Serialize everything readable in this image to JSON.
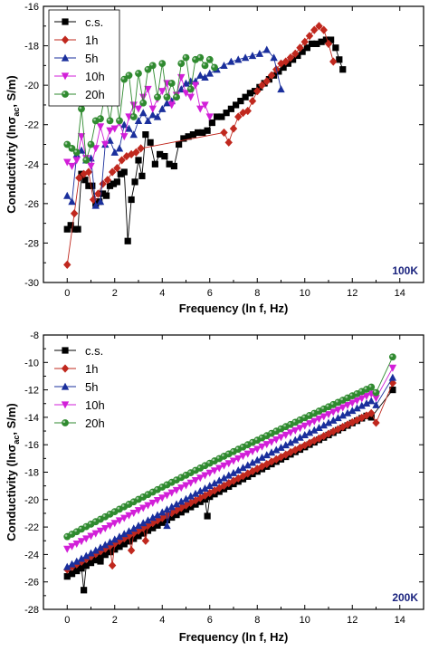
{
  "chart_data": [
    {
      "type": "line",
      "panel_label": "100K",
      "xlabel": "Frequency (ln f, Hz)",
      "ylabel_main": "Conductivity (lnσ",
      "ylabel_sub": "ac",
      "ylabel_end": ", S/m)",
      "xlim": [
        -1,
        15
      ],
      "ylim": [
        -30,
        -16
      ],
      "xticks": [
        "0",
        "2",
        "4",
        "6",
        "8",
        "10",
        "12",
        "14"
      ],
      "yticks": [
        "-30",
        "-28",
        "-26",
        "-24",
        "-22",
        "-20",
        "-18",
        "-16"
      ],
      "legend_position": "top-left",
      "series": [
        {
          "name": "c.s.",
          "color": "#000000",
          "marker": "square",
          "x": [
            0,
            0.15,
            0.3,
            0.45,
            0.6,
            0.75,
            0.9,
            1.05,
            1.2,
            1.35,
            1.5,
            1.65,
            1.8,
            1.95,
            2.1,
            2.25,
            2.4,
            2.55,
            2.7,
            2.85,
            3.0,
            3.15,
            3.3,
            3.5,
            3.7,
            3.9,
            4.1,
            4.3,
            4.5,
            4.7,
            4.9,
            5.1,
            5.3,
            5.5,
            5.7,
            5.9,
            6.1,
            6.3,
            6.5,
            6.7,
            6.9,
            7.1,
            7.3,
            7.5,
            7.7,
            7.9,
            8.1,
            8.3,
            8.5,
            8.7,
            8.9,
            9.1,
            9.3,
            9.5,
            9.7,
            9.9,
            10.1,
            10.3,
            10.5,
            10.7,
            10.9,
            11.1,
            11.3,
            11.45,
            11.6
          ],
          "y": [
            -27.3,
            -27.1,
            -27.3,
            -27.3,
            -24.5,
            -24.8,
            -25.1,
            -25.1,
            -26.0,
            -25.9,
            -25.5,
            -25.6,
            -25.1,
            -25.0,
            -24.9,
            -24.5,
            -24.4,
            -27.9,
            -25.8,
            -24.9,
            -23.8,
            -24.6,
            -22.5,
            -22.9,
            -24.0,
            -23.5,
            -23.6,
            -24.0,
            -24.1,
            -23.0,
            -22.7,
            -22.6,
            -22.5,
            -22.4,
            -22.4,
            -22.3,
            -21.9,
            -21.6,
            -21.6,
            -21.4,
            -21.2,
            -21.0,
            -20.8,
            -20.6,
            -20.4,
            -20.3,
            -20.1,
            -19.9,
            -19.7,
            -19.5,
            -19.3,
            -19.1,
            -18.9,
            -18.7,
            -18.5,
            -18.3,
            -18.1,
            -17.9,
            -17.9,
            -17.8,
            -17.7,
            -17.7,
            -18.1,
            -18.7,
            -19.2
          ]
        },
        {
          "name": "1h",
          "color": "#c0281e",
          "marker": "diamond",
          "x": [
            0,
            0.3,
            0.5,
            0.7,
            0.9,
            1.1,
            1.3,
            1.5,
            1.7,
            1.9,
            2.1,
            2.3,
            2.5,
            2.7,
            2.9,
            3.1,
            6.6,
            6.8,
            7.0,
            7.2,
            7.4,
            7.6,
            7.8,
            8.0,
            8.2,
            8.4,
            8.6,
            8.8,
            9.0,
            9.2,
            9.4,
            9.6,
            9.8,
            10.0,
            10.2,
            10.4,
            10.6,
            10.8,
            11.0,
            11.2
          ],
          "y": [
            -29.1,
            -26.5,
            -24.7,
            -24.5,
            -24.4,
            -25.8,
            -25.5,
            -25.0,
            -24.8,
            -24.4,
            -24.2,
            -23.8,
            -23.6,
            -23.5,
            -23.4,
            -23.2,
            -22.4,
            -22.9,
            -22.2,
            -21.6,
            -21.4,
            -21.3,
            -20.8,
            -20.3,
            -20.0,
            -19.8,
            -19.5,
            -19.2,
            -18.9,
            -18.8,
            -18.6,
            -18.4,
            -18.1,
            -17.8,
            -17.5,
            -17.2,
            -17.0,
            -17.2,
            -17.9,
            -18.8
          ]
        },
        {
          "name": "5h",
          "color": "#1a2f9c",
          "marker": "triangle-up",
          "x": [
            0,
            0.2,
            0.4,
            0.6,
            0.8,
            1.0,
            1.2,
            1.4,
            1.6,
            1.8,
            2.0,
            2.2,
            2.4,
            2.6,
            2.8,
            3.0,
            3.2,
            3.4,
            3.6,
            3.8,
            4.0,
            4.2,
            4.4,
            4.6,
            4.8,
            5.0,
            5.2,
            5.4,
            5.6,
            5.8,
            6.0,
            6.3,
            6.6,
            6.9,
            7.2,
            7.5,
            7.8,
            8.1,
            8.4,
            8.7,
            9.0
          ],
          "y": [
            -25.6,
            -25.9,
            -23.5,
            -23.3,
            -23.8,
            -23.7,
            -26.1,
            -25.9,
            -23.0,
            -22.8,
            -23.4,
            -23.2,
            -22.0,
            -22.2,
            -22.5,
            -21.8,
            -21.4,
            -21.8,
            -21.5,
            -21.6,
            -21.2,
            -20.9,
            -20.8,
            -20.5,
            -20.2,
            -19.9,
            -19.8,
            -19.8,
            -19.5,
            -19.6,
            -19.4,
            -19.2,
            -19.0,
            -18.8,
            -18.7,
            -18.6,
            -18.5,
            -18.4,
            -18.2,
            -18.6,
            -20.2
          ]
        },
        {
          "name": "10h",
          "color": "#d21fd8",
          "marker": "triangle-down",
          "x": [
            0,
            0.2,
            0.4,
            0.6,
            0.8,
            1.0,
            1.2,
            1.4,
            1.6,
            1.8,
            2.0,
            2.2,
            2.4,
            2.6,
            2.8,
            3.0,
            3.2,
            3.4,
            3.6,
            3.8,
            4.0,
            4.2,
            4.4,
            4.6,
            4.8,
            5.0,
            5.2,
            5.4,
            5.6,
            5.8,
            6.0
          ],
          "y": [
            -23.9,
            -24.1,
            -23.8,
            -22.6,
            -23.7,
            -24.1,
            -23.2,
            -22.1,
            -23.0,
            -22.3,
            -22.2,
            -21.9,
            -22.6,
            -21.6,
            -21.0,
            -21.2,
            -20.6,
            -20.2,
            -21.2,
            -20.7,
            -20.3,
            -19.9,
            -21.0,
            -20.5,
            -19.6,
            -20.4,
            -20.6,
            -20.0,
            -21.2,
            -21.0,
            -21.6
          ]
        },
        {
          "name": "20h",
          "color": "#2f8a2f",
          "marker": "circle",
          "x": [
            0,
            0.2,
            0.4,
            0.6,
            0.8,
            1.0,
            1.2,
            1.4,
            1.6,
            1.8,
            2.0,
            2.2,
            2.4,
            2.6,
            2.8,
            3.0,
            3.2,
            3.4,
            3.6,
            3.8,
            4.0,
            4.2,
            4.4,
            4.6,
            4.8,
            5.0,
            5.2,
            5.4,
            5.6,
            5.8,
            6.0,
            6.2
          ],
          "y": [
            -23.0,
            -23.2,
            -23.4,
            -21.2,
            -23.8,
            -23.0,
            -21.8,
            -21.7,
            -20.4,
            -21.8,
            -20.1,
            -21.8,
            -19.7,
            -19.5,
            -21.6,
            -19.4,
            -20.9,
            -19.2,
            -19.0,
            -20.6,
            -18.9,
            -20.6,
            -19.9,
            -20.6,
            -18.9,
            -18.6,
            -20.2,
            -18.7,
            -18.6,
            -19.0,
            -18.7,
            -19.1
          ]
        }
      ]
    },
    {
      "type": "line",
      "panel_label": "200K",
      "xlabel": "Frequency (ln f, Hz)",
      "ylabel_main": "Conductivity (lnσ",
      "ylabel_sub": "ac",
      "ylabel_end": ", S/m)",
      "xlim": [
        -1,
        15
      ],
      "ylim": [
        -28,
        -8
      ],
      "xticks": [
        "0",
        "2",
        "4",
        "6",
        "8",
        "10",
        "12",
        "14"
      ],
      "yticks": [
        "-28",
        "-26",
        "-24",
        "-22",
        "-20",
        "-18",
        "-16",
        "-14",
        "-12",
        "-10",
        "-8"
      ],
      "legend_position": "top-left",
      "series": [
        {
          "name": "c.s.",
          "color": "#000000",
          "marker": "square",
          "x_start": 0,
          "x_step": 0.2,
          "curve_end": 12.6,
          "y_start": -25.6,
          "y_end": -13.9,
          "outliers": [
            [
              0.2,
              -25.4
            ],
            [
              0.4,
              -25.0
            ],
            [
              0.6,
              -24.9
            ],
            [
              0.7,
              -26.6
            ],
            [
              1.4,
              -24.5
            ],
            [
              5.9,
              -21.2
            ]
          ],
          "tail": [
            [
              12.8,
              -14.0
            ],
            [
              13.7,
              -12.0
            ]
          ]
        },
        {
          "name": "1h",
          "color": "#c0281e",
          "marker": "diamond",
          "x_start": 0,
          "x_step": 0.2,
          "curve_end": 12.8,
          "y_start": -25.1,
          "y_end": -13.7,
          "outliers": [
            [
              1.9,
              -24.8
            ],
            [
              2.7,
              -23.7
            ],
            [
              3.3,
              -23.0
            ]
          ],
          "tail": [
            [
              13.0,
              -14.4
            ],
            [
              13.7,
              -11.5
            ]
          ]
        },
        {
          "name": "5h",
          "color": "#1a2f9c",
          "marker": "triangle-up",
          "x_start": 0,
          "x_step": 0.2,
          "curve_end": 12.8,
          "y_start": -24.9,
          "y_end": -12.8,
          "outliers": [
            [
              4.2,
              -21.9
            ]
          ],
          "tail": [
            [
              13.0,
              -13.1
            ],
            [
              13.7,
              -11.1
            ]
          ]
        },
        {
          "name": "10h",
          "color": "#d21fd8",
          "marker": "triangle-down",
          "x_start": 0,
          "x_step": 0.2,
          "curve_end": 12.8,
          "y_start": -23.6,
          "y_end": -12.3,
          "outliers": [],
          "tail": [
            [
              13.0,
              -12.6
            ],
            [
              13.7,
              -10.4
            ]
          ]
        },
        {
          "name": "20h",
          "color": "#2f8a2f",
          "marker": "circle",
          "x_start": 0,
          "x_step": 0.2,
          "curve_end": 12.8,
          "y_start": -22.7,
          "y_end": -11.8,
          "outliers": [],
          "tail": [
            [
              13.0,
              -12.2
            ],
            [
              13.7,
              -9.6
            ]
          ]
        }
      ]
    }
  ]
}
